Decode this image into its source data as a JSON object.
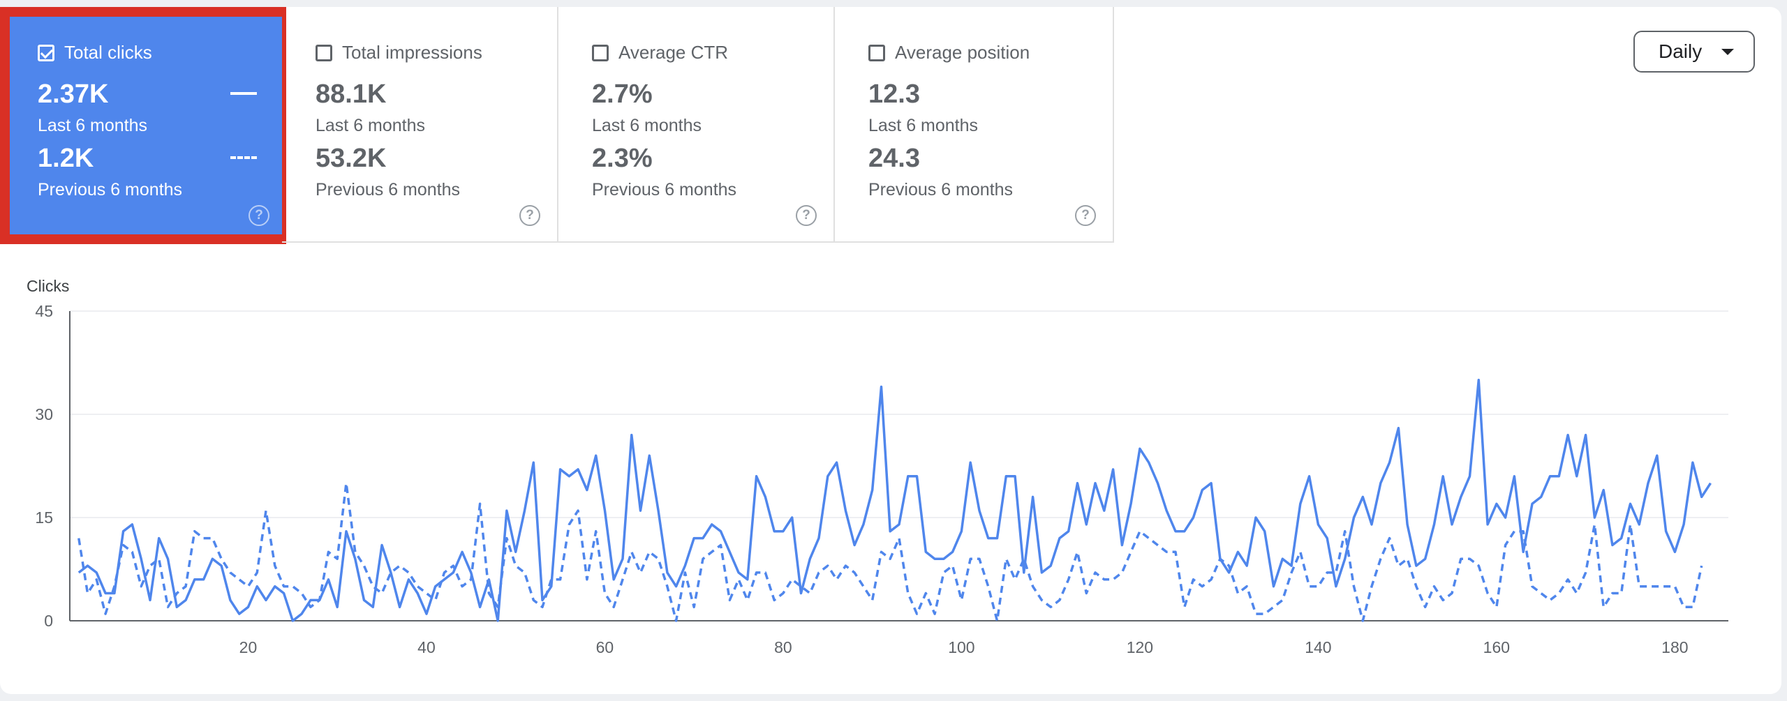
{
  "cards": [
    {
      "title": "Total clicks",
      "value_last": "2.37K",
      "label_last": "Last 6 months",
      "value_prev": "1.2K",
      "label_prev": "Previous 6 months",
      "checked": true
    },
    {
      "title": "Total impressions",
      "value_last": "88.1K",
      "label_last": "Last 6 months",
      "value_prev": "53.2K",
      "label_prev": "Previous 6 months",
      "checked": false
    },
    {
      "title": "Average CTR",
      "value_last": "2.7%",
      "label_last": "Last 6 months",
      "value_prev": "2.3%",
      "label_prev": "Previous 6 months",
      "checked": false
    },
    {
      "title": "Average position",
      "value_last": "12.3",
      "label_last": "Last 6 months",
      "value_prev": "24.3",
      "label_prev": "Previous 6 months",
      "checked": false
    }
  ],
  "help_glyph": "?",
  "granularity": {
    "selected": "Daily"
  },
  "colors": {
    "series": "#4f86ec",
    "highlight": "#d93025",
    "text": "#5f6368"
  },
  "chart_data": {
    "type": "line",
    "ylabel": "Clicks",
    "ylim": [
      0,
      45
    ],
    "yticks": [
      0,
      15,
      30,
      45
    ],
    "xlim": [
      0,
      186
    ],
    "xticks": [
      20,
      40,
      60,
      80,
      100,
      120,
      140,
      160,
      180
    ],
    "grid": true,
    "series": [
      {
        "style": "solid",
        "x_start": 1,
        "values": [
          7,
          8,
          7,
          4,
          4,
          13,
          14,
          9,
          3,
          12,
          9,
          2,
          3,
          6,
          6,
          9,
          8,
          3,
          1,
          2,
          5,
          3,
          5,
          4,
          0,
          1,
          3,
          3,
          6,
          2,
          13,
          9,
          3,
          2,
          11,
          7,
          2,
          6,
          4,
          1,
          5,
          6,
          7,
          10,
          7,
          2,
          6,
          0,
          16,
          10,
          16,
          23,
          3,
          5,
          22,
          21,
          22,
          19,
          24,
          16,
          6,
          9,
          27,
          16,
          24,
          16,
          7,
          5,
          8,
          12,
          12,
          14,
          13,
          10,
          7,
          6,
          21,
          18,
          13,
          13,
          15,
          4,
          9,
          12,
          21,
          23,
          16,
          11,
          14,
          19,
          34,
          13,
          14,
          21,
          21,
          10,
          9,
          9,
          10,
          13,
          23,
          16,
          12,
          12,
          21,
          21,
          7,
          18,
          7,
          8,
          12,
          13,
          20,
          14,
          20,
          16,
          22,
          11,
          17,
          25,
          23,
          20,
          16,
          13,
          13,
          15,
          19,
          20,
          9,
          7,
          10,
          8,
          15,
          13,
          5,
          9,
          8,
          17,
          21,
          14,
          12,
          5,
          9,
          15,
          18,
          14,
          20,
          23,
          28,
          14,
          8,
          9,
          14,
          21,
          14,
          18,
          21,
          35,
          14,
          17,
          15,
          21,
          10,
          17,
          18,
          21,
          21,
          27,
          21,
          27,
          15,
          19,
          11,
          12,
          17,
          14,
          20,
          24,
          13,
          10,
          14,
          23,
          18,
          20
        ]
      },
      {
        "style": "dashed",
        "x_start": 1,
        "values": [
          12,
          4,
          6,
          1,
          5,
          11,
          10,
          5,
          8,
          9,
          2,
          4,
          5,
          13,
          12,
          12,
          9,
          7,
          6,
          5,
          7,
          16,
          8,
          5,
          5,
          4,
          2,
          3,
          10,
          9,
          20,
          10,
          8,
          5,
          4,
          7,
          8,
          7,
          5,
          4,
          3,
          7,
          8,
          5,
          6,
          17,
          4,
          2,
          12,
          8,
          7,
          3,
          2,
          6,
          6,
          14,
          16,
          6,
          13,
          4,
          2,
          6,
          10,
          7,
          10,
          9,
          5,
          0,
          7,
          2,
          9,
          10,
          11,
          3,
          6,
          3,
          7,
          7,
          3,
          4,
          6,
          5,
          4,
          7,
          8,
          6,
          8,
          7,
          5,
          3,
          10,
          9,
          12,
          4,
          1,
          4,
          1,
          7,
          8,
          3,
          9,
          9,
          5,
          0,
          9,
          6,
          9,
          5,
          3,
          2,
          3,
          6,
          10,
          4,
          7,
          6,
          6,
          7,
          10,
          13,
          12,
          11,
          10,
          10,
          2,
          6,
          5,
          6,
          9,
          8,
          4,
          5,
          1,
          1,
          2,
          3,
          7,
          10,
          5,
          5,
          7,
          7,
          13,
          5,
          0,
          5,
          9,
          12,
          8,
          9,
          5,
          2,
          5,
          3,
          4,
          9,
          9,
          8,
          4,
          2,
          11,
          13,
          13,
          5,
          4,
          3,
          4,
          6,
          4,
          7,
          14,
          2,
          4,
          4,
          14,
          5,
          5,
          5,
          5,
          5,
          2,
          2,
          8
        ]
      }
    ]
  }
}
